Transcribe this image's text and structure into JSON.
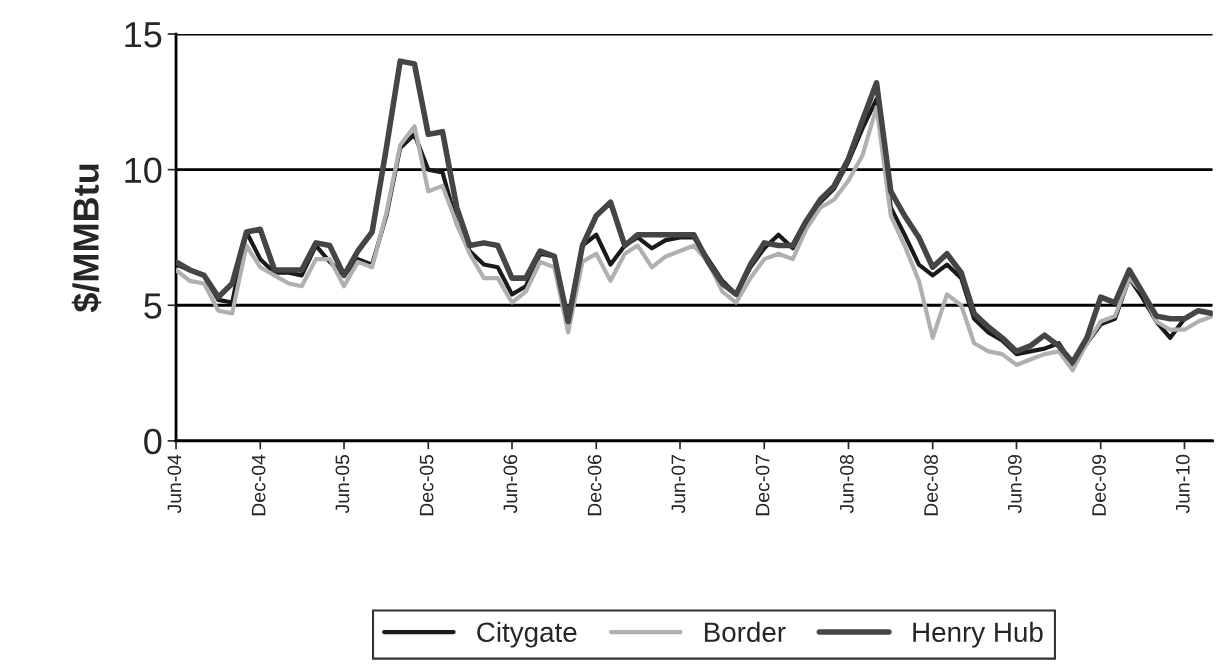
{
  "chart_data": {
    "type": "line",
    "ylabel": "$/MMBtu",
    "x": [
      "2004-06",
      "2004-07",
      "2004-08",
      "2004-09",
      "2004-10",
      "2004-11",
      "2004-12",
      "2005-01",
      "2005-02",
      "2005-03",
      "2005-04",
      "2005-05",
      "2005-06",
      "2005-07",
      "2005-08",
      "2005-09",
      "2005-10",
      "2005-11",
      "2005-12",
      "2006-01",
      "2006-02",
      "2006-03",
      "2006-04",
      "2006-05",
      "2006-06",
      "2006-07",
      "2006-08",
      "2006-09",
      "2006-10",
      "2006-11",
      "2006-12",
      "2007-01",
      "2007-02",
      "2007-03",
      "2007-04",
      "2007-05",
      "2007-06",
      "2007-07",
      "2007-08",
      "2007-09",
      "2007-10",
      "2007-11",
      "2007-12",
      "2008-01",
      "2008-02",
      "2008-03",
      "2008-04",
      "2008-05",
      "2008-06",
      "2008-07",
      "2008-08",
      "2008-09",
      "2008-10",
      "2008-11",
      "2008-12",
      "2009-01",
      "2009-02",
      "2009-03",
      "2009-04",
      "2009-05",
      "2009-06",
      "2009-07",
      "2009-08",
      "2009-09",
      "2009-10",
      "2009-11",
      "2009-12",
      "2010-01",
      "2010-02",
      "2010-03",
      "2010-04",
      "2010-05",
      "2010-06",
      "2010-07",
      "2010-08"
    ],
    "series": [
      {
        "name": "Citygate",
        "color": "#1a1a1a",
        "values": [
          6.5,
          6.3,
          6.1,
          5.2,
          5.1,
          7.7,
          6.7,
          6.2,
          6.2,
          6.1,
          7.2,
          6.6,
          6.1,
          6.7,
          6.5,
          8.3,
          10.8,
          11.3,
          10.0,
          9.9,
          8.0,
          7.0,
          6.5,
          6.4,
          5.4,
          5.7,
          6.9,
          6.8,
          4.5,
          7.2,
          7.6,
          6.5,
          7.2,
          7.5,
          7.1,
          7.4,
          7.5,
          7.5,
          6.7,
          5.9,
          5.4,
          6.4,
          7.1,
          7.6,
          7.1,
          8.0,
          8.8,
          9.3,
          10.3,
          11.5,
          12.6,
          8.6,
          7.6,
          6.5,
          6.1,
          6.5,
          6.0,
          4.5,
          4.0,
          3.7,
          3.2,
          3.3,
          3.4,
          3.6,
          2.8,
          3.6,
          4.3,
          4.5,
          6.0,
          5.3,
          4.4,
          3.8,
          4.5,
          4.8,
          4.7
        ]
      },
      {
        "name": "Border",
        "color": "#b0b0b0",
        "values": [
          6.3,
          5.9,
          5.8,
          4.8,
          4.7,
          7.2,
          6.4,
          6.1,
          5.8,
          5.7,
          6.7,
          6.7,
          5.7,
          6.6,
          6.4,
          8.4,
          10.9,
          11.6,
          9.2,
          9.4,
          8.0,
          6.9,
          6.0,
          6.0,
          5.1,
          5.5,
          6.6,
          6.4,
          4.0,
          6.6,
          6.9,
          5.9,
          6.9,
          7.2,
          6.4,
          6.8,
          7.0,
          7.2,
          6.6,
          5.5,
          5.1,
          6.0,
          6.7,
          6.9,
          6.7,
          7.8,
          8.6,
          8.9,
          9.6,
          10.5,
          12.3,
          8.3,
          7.2,
          5.9,
          3.8,
          5.4,
          5.0,
          3.6,
          3.3,
          3.2,
          2.8,
          3.0,
          3.2,
          3.3,
          2.6,
          3.6,
          4.4,
          4.6,
          6.0,
          5.5,
          4.4,
          4.1,
          4.1,
          4.4,
          4.6
        ]
      },
      {
        "name": "Henry Hub",
        "color": "#454545",
        "values": [
          6.6,
          6.3,
          6.1,
          5.3,
          5.8,
          7.7,
          7.8,
          6.3,
          6.3,
          6.3,
          7.3,
          7.2,
          6.1,
          7.0,
          7.7,
          10.8,
          14.0,
          13.9,
          11.3,
          11.4,
          8.6,
          7.2,
          7.3,
          7.2,
          6.0,
          6.0,
          7.0,
          6.8,
          4.4,
          7.2,
          8.3,
          8.8,
          7.2,
          7.6,
          7.6,
          7.6,
          7.6,
          7.6,
          6.6,
          5.8,
          5.4,
          6.5,
          7.3,
          7.2,
          7.2,
          8.1,
          8.9,
          9.4,
          10.4,
          11.8,
          13.2,
          9.2,
          8.3,
          7.5,
          6.4,
          6.9,
          6.2,
          4.7,
          4.2,
          3.8,
          3.3,
          3.5,
          3.9,
          3.5,
          2.9,
          3.8,
          5.3,
          5.1,
          6.3,
          5.5,
          4.6,
          4.5,
          4.5,
          4.8,
          4.7
        ]
      }
    ],
    "xlim": [
      "2004-06",
      "2010-08"
    ],
    "xticks": [
      {
        "value": "2004-06",
        "label": "Jun-04"
      },
      {
        "value": "2004-12",
        "label": "Dec-04"
      },
      {
        "value": "2005-06",
        "label": "Jun-05"
      },
      {
        "value": "2005-12",
        "label": "Dec-05"
      },
      {
        "value": "2006-06",
        "label": "Jun-06"
      },
      {
        "value": "2006-12",
        "label": "Dec-06"
      },
      {
        "value": "2007-06",
        "label": "Jun-07"
      },
      {
        "value": "2007-12",
        "label": "Dec-07"
      },
      {
        "value": "2008-06",
        "label": "Jun-08"
      },
      {
        "value": "2008-12",
        "label": "Dec-08"
      },
      {
        "value": "2009-06",
        "label": "Jun-09"
      },
      {
        "value": "2009-12",
        "label": "Dec-09"
      },
      {
        "value": "2010-06",
        "label": "Jun-10"
      }
    ],
    "ylim": [
      0,
      15
    ],
    "yticks": [
      0,
      5,
      10,
      15
    ],
    "grid": "y",
    "legend": "bottom",
    "marker": "none",
    "line_style": "solid"
  }
}
